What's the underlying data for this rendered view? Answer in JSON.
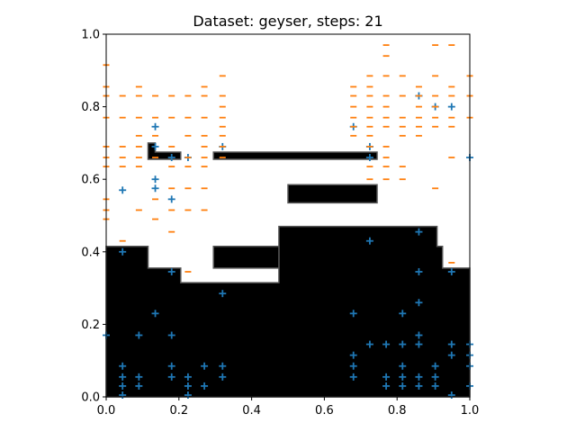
{
  "chart_data": {
    "type": "scatter",
    "title": "Dataset: geyser, steps: 21",
    "xlim": [
      0.0,
      1.0
    ],
    "ylim": [
      0.0,
      1.0
    ],
    "x_ticks": [
      "0.0",
      "0.2",
      "0.4",
      "0.6",
      "0.8",
      "1.0"
    ],
    "y_ticks": [
      "0.0",
      "0.2",
      "0.4",
      "0.6",
      "0.8",
      "1.0"
    ],
    "grid": false,
    "legend": "none",
    "decision_region": {
      "color": "#000000",
      "polygons": [
        [
          [
            0,
            0
          ],
          [
            0,
            0.415
          ],
          [
            0.115,
            0.415
          ],
          [
            0.115,
            0.355
          ],
          [
            0.205,
            0.355
          ],
          [
            0.205,
            0.315
          ],
          [
            0.475,
            0.315
          ],
          [
            0.475,
            0.47
          ],
          [
            0.91,
            0.47
          ],
          [
            0.91,
            0.415
          ],
          [
            0.925,
            0.415
          ],
          [
            0.925,
            0.355
          ],
          [
            1,
            0.355
          ],
          [
            1,
            0
          ]
        ],
        [
          [
            0.295,
            0.355
          ],
          [
            0.475,
            0.355
          ],
          [
            0.475,
            0.415
          ],
          [
            0.295,
            0.415
          ]
        ],
        [
          [
            0.5,
            0.535
          ],
          [
            0.745,
            0.535
          ],
          [
            0.745,
            0.585
          ],
          [
            0.5,
            0.585
          ]
        ],
        [
          [
            0.295,
            0.655
          ],
          [
            0.745,
            0.655
          ],
          [
            0.745,
            0.675
          ],
          [
            0.295,
            0.675
          ]
        ],
        [
          [
            0.115,
            0.655
          ],
          [
            0.205,
            0.655
          ],
          [
            0.205,
            0.675
          ],
          [
            0.135,
            0.675
          ],
          [
            0.135,
            0.7
          ],
          [
            0.115,
            0.7
          ]
        ]
      ]
    },
    "series": [
      {
        "marker": "+",
        "color": "#1f77b4",
        "points": [
          [
            0.0,
            0.17
          ],
          [
            0.045,
            0.57
          ],
          [
            0.045,
            0.4
          ],
          [
            0.045,
            0.085
          ],
          [
            0.045,
            0.055
          ],
          [
            0.045,
            0.03
          ],
          [
            0.045,
            0.005
          ],
          [
            0.09,
            0.17
          ],
          [
            0.09,
            0.055
          ],
          [
            0.09,
            0.03
          ],
          [
            0.135,
            0.745
          ],
          [
            0.135,
            0.69
          ],
          [
            0.135,
            0.6
          ],
          [
            0.135,
            0.575
          ],
          [
            0.135,
            0.23
          ],
          [
            0.18,
            0.66
          ],
          [
            0.18,
            0.545
          ],
          [
            0.18,
            0.345
          ],
          [
            0.18,
            0.17
          ],
          [
            0.18,
            0.085
          ],
          [
            0.18,
            0.055
          ],
          [
            0.225,
            0.66
          ],
          [
            0.225,
            0.055
          ],
          [
            0.225,
            0.03
          ],
          [
            0.225,
            0.005
          ],
          [
            0.27,
            0.085
          ],
          [
            0.27,
            0.03
          ],
          [
            0.32,
            0.69
          ],
          [
            0.32,
            0.285
          ],
          [
            0.32,
            0.085
          ],
          [
            0.32,
            0.055
          ],
          [
            0.68,
            0.745
          ],
          [
            0.68,
            0.23
          ],
          [
            0.68,
            0.115
          ],
          [
            0.68,
            0.085
          ],
          [
            0.68,
            0.055
          ],
          [
            0.725,
            0.69
          ],
          [
            0.725,
            0.66
          ],
          [
            0.725,
            0.43
          ],
          [
            0.725,
            0.145
          ],
          [
            0.77,
            0.145
          ],
          [
            0.77,
            0.055
          ],
          [
            0.77,
            0.03
          ],
          [
            0.815,
            0.23
          ],
          [
            0.815,
            0.145
          ],
          [
            0.815,
            0.085
          ],
          [
            0.815,
            0.055
          ],
          [
            0.815,
            0.03
          ],
          [
            0.86,
            0.83
          ],
          [
            0.86,
            0.455
          ],
          [
            0.86,
            0.345
          ],
          [
            0.86,
            0.26
          ],
          [
            0.86,
            0.17
          ],
          [
            0.86,
            0.145
          ],
          [
            0.86,
            0.055
          ],
          [
            0.86,
            0.03
          ],
          [
            0.905,
            0.8
          ],
          [
            0.905,
            0.085
          ],
          [
            0.905,
            0.055
          ],
          [
            0.905,
            0.03
          ],
          [
            0.95,
            0.8
          ],
          [
            0.95,
            0.345
          ],
          [
            0.95,
            0.145
          ],
          [
            0.95,
            0.115
          ],
          [
            0.95,
            0.005
          ],
          [
            1.0,
            0.66
          ],
          [
            1.0,
            0.145
          ],
          [
            1.0,
            0.115
          ],
          [
            1.0,
            0.085
          ],
          [
            1.0,
            0.03
          ]
        ]
      },
      {
        "marker": "_",
        "color": "#ff7f0e",
        "points": [
          [
            0.0,
            0.915
          ],
          [
            0.0,
            0.855
          ],
          [
            0.0,
            0.83
          ],
          [
            0.0,
            0.77
          ],
          [
            0.0,
            0.69
          ],
          [
            0.0,
            0.66
          ],
          [
            0.0,
            0.635
          ],
          [
            0.0,
            0.545
          ],
          [
            0.0,
            0.515
          ],
          [
            0.0,
            0.49
          ],
          [
            0.045,
            0.83
          ],
          [
            0.045,
            0.77
          ],
          [
            0.045,
            0.69
          ],
          [
            0.045,
            0.66
          ],
          [
            0.045,
            0.635
          ],
          [
            0.045,
            0.43
          ],
          [
            0.09,
            0.855
          ],
          [
            0.09,
            0.83
          ],
          [
            0.09,
            0.77
          ],
          [
            0.09,
            0.72
          ],
          [
            0.09,
            0.69
          ],
          [
            0.09,
            0.66
          ],
          [
            0.09,
            0.635
          ],
          [
            0.09,
            0.515
          ],
          [
            0.135,
            0.83
          ],
          [
            0.135,
            0.77
          ],
          [
            0.135,
            0.72
          ],
          [
            0.135,
            0.66
          ],
          [
            0.135,
            0.545
          ],
          [
            0.135,
            0.49
          ],
          [
            0.18,
            0.83
          ],
          [
            0.18,
            0.77
          ],
          [
            0.18,
            0.69
          ],
          [
            0.18,
            0.635
          ],
          [
            0.18,
            0.575
          ],
          [
            0.18,
            0.515
          ],
          [
            0.18,
            0.455
          ],
          [
            0.225,
            0.83
          ],
          [
            0.225,
            0.77
          ],
          [
            0.225,
            0.72
          ],
          [
            0.225,
            0.66
          ],
          [
            0.225,
            0.635
          ],
          [
            0.225,
            0.575
          ],
          [
            0.225,
            0.515
          ],
          [
            0.225,
            0.345
          ],
          [
            0.27,
            0.855
          ],
          [
            0.27,
            0.83
          ],
          [
            0.27,
            0.77
          ],
          [
            0.27,
            0.72
          ],
          [
            0.27,
            0.69
          ],
          [
            0.27,
            0.66
          ],
          [
            0.27,
            0.635
          ],
          [
            0.27,
            0.575
          ],
          [
            0.27,
            0.515
          ],
          [
            0.32,
            0.885
          ],
          [
            0.32,
            0.83
          ],
          [
            0.32,
            0.8
          ],
          [
            0.32,
            0.77
          ],
          [
            0.32,
            0.745
          ],
          [
            0.32,
            0.72
          ],
          [
            0.32,
            0.69
          ],
          [
            0.32,
            0.66
          ],
          [
            0.68,
            0.855
          ],
          [
            0.68,
            0.83
          ],
          [
            0.68,
            0.8
          ],
          [
            0.68,
            0.77
          ],
          [
            0.68,
            0.745
          ],
          [
            0.68,
            0.72
          ],
          [
            0.725,
            0.885
          ],
          [
            0.725,
            0.855
          ],
          [
            0.725,
            0.83
          ],
          [
            0.725,
            0.8
          ],
          [
            0.725,
            0.77
          ],
          [
            0.725,
            0.745
          ],
          [
            0.725,
            0.72
          ],
          [
            0.725,
            0.69
          ],
          [
            0.725,
            0.635
          ],
          [
            0.725,
            0.6
          ],
          [
            0.77,
            0.97
          ],
          [
            0.77,
            0.94
          ],
          [
            0.77,
            0.885
          ],
          [
            0.77,
            0.83
          ],
          [
            0.77,
            0.8
          ],
          [
            0.77,
            0.77
          ],
          [
            0.77,
            0.745
          ],
          [
            0.77,
            0.69
          ],
          [
            0.77,
            0.66
          ],
          [
            0.77,
            0.635
          ],
          [
            0.77,
            0.6
          ],
          [
            0.815,
            0.885
          ],
          [
            0.815,
            0.83
          ],
          [
            0.815,
            0.77
          ],
          [
            0.815,
            0.745
          ],
          [
            0.815,
            0.72
          ],
          [
            0.815,
            0.635
          ],
          [
            0.815,
            0.6
          ],
          [
            0.86,
            0.855
          ],
          [
            0.86,
            0.83
          ],
          [
            0.86,
            0.8
          ],
          [
            0.86,
            0.77
          ],
          [
            0.86,
            0.745
          ],
          [
            0.86,
            0.72
          ],
          [
            0.905,
            0.97
          ],
          [
            0.905,
            0.885
          ],
          [
            0.905,
            0.83
          ],
          [
            0.905,
            0.8
          ],
          [
            0.905,
            0.77
          ],
          [
            0.905,
            0.745
          ],
          [
            0.905,
            0.575
          ],
          [
            0.95,
            0.97
          ],
          [
            0.95,
            0.855
          ],
          [
            0.95,
            0.83
          ],
          [
            0.95,
            0.77
          ],
          [
            0.95,
            0.745
          ],
          [
            0.95,
            0.66
          ],
          [
            0.95,
            0.37
          ],
          [
            1.0,
            0.885
          ],
          [
            1.0,
            0.83
          ],
          [
            1.0,
            0.77
          ]
        ]
      }
    ]
  }
}
